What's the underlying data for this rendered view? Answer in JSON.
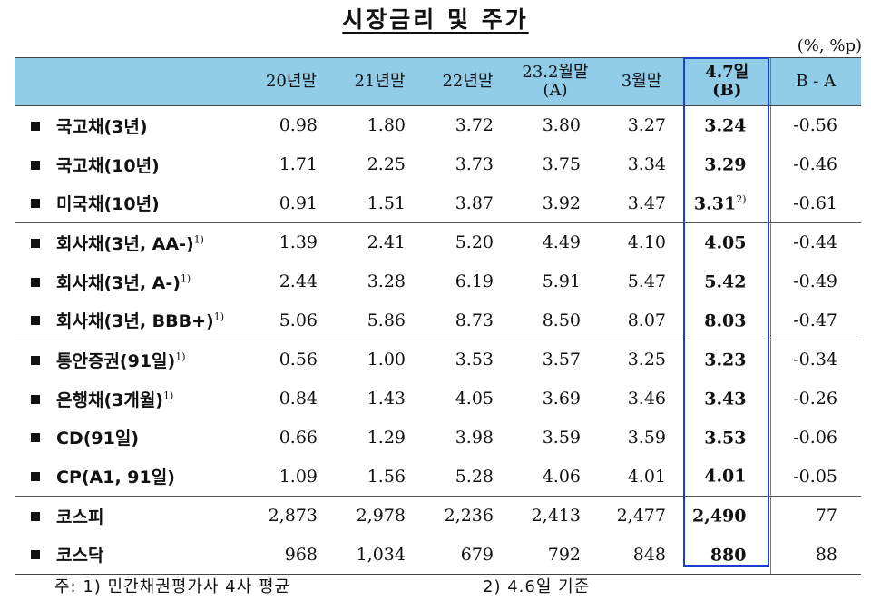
{
  "title": "시장금리 및 주가",
  "unit": "(%, %p)",
  "headers": {
    "c1": "20년말",
    "c2": "21년말",
    "c3": "22년말",
    "c4a": "23.2월말",
    "c4b": "(A)",
    "c5": "3월말",
    "c6a": "4.7일",
    "c6b": "(B)",
    "c7": "B - A"
  },
  "rows": [
    {
      "label": "국고채(3년)",
      "sup": "",
      "v": [
        "0.98",
        "1.80",
        "3.72",
        "3.80",
        "3.27"
      ],
      "b": "3.24",
      "bsup": "",
      "ba": "-0.56"
    },
    {
      "label": "국고채(10년)",
      "sup": "",
      "v": [
        "1.71",
        "2.25",
        "3.73",
        "3.75",
        "3.34"
      ],
      "b": "3.29",
      "bsup": "",
      "ba": "-0.46"
    },
    {
      "label": "미국채(10년)",
      "sup": "",
      "v": [
        "0.91",
        "1.51",
        "3.87",
        "3.92",
        "3.47"
      ],
      "b": "3.31",
      "bsup": "2)",
      "ba": "-0.61"
    },
    {
      "label": "회사채(3년, AA-)",
      "sup": "1)",
      "v": [
        "1.39",
        "2.41",
        "5.20",
        "4.49",
        "4.10"
      ],
      "b": "4.05",
      "bsup": "",
      "ba": "-0.44"
    },
    {
      "label": "회사채(3년, A-)",
      "sup": "1)",
      "v": [
        "2.44",
        "3.28",
        "6.19",
        "5.91",
        "5.47"
      ],
      "b": "5.42",
      "bsup": "",
      "ba": "-0.49"
    },
    {
      "label": "회사채(3년, BBB+)",
      "sup": "1)",
      "v": [
        "5.06",
        "5.86",
        "8.73",
        "8.50",
        "8.07"
      ],
      "b": "8.03",
      "bsup": "",
      "ba": "-0.47"
    },
    {
      "label": "통안증권(91일)",
      "sup": "1)",
      "v": [
        "0.56",
        "1.00",
        "3.53",
        "3.57",
        "3.25"
      ],
      "b": "3.23",
      "bsup": "",
      "ba": "-0.34"
    },
    {
      "label": "은행채(3개월)",
      "sup": "1)",
      "v": [
        "0.84",
        "1.43",
        "4.05",
        "3.69",
        "3.46"
      ],
      "b": "3.43",
      "bsup": "",
      "ba": "-0.26"
    },
    {
      "label": "CD(91일)",
      "sup": "",
      "v": [
        "0.66",
        "1.29",
        "3.98",
        "3.59",
        "3.59"
      ],
      "b": "3.53",
      "bsup": "",
      "ba": "-0.06"
    },
    {
      "label": "CP(A1, 91일)",
      "sup": "",
      "v": [
        "1.09",
        "1.56",
        "5.28",
        "4.06",
        "4.01"
      ],
      "b": "4.01",
      "bsup": "",
      "ba": "-0.05"
    },
    {
      "label": "코스피",
      "sup": "",
      "v": [
        "2,873",
        "2,978",
        "2,236",
        "2,413",
        "2,477"
      ],
      "b": "2,490",
      "bsup": "",
      "ba": "77"
    },
    {
      "label": "코스닥",
      "sup": "",
      "v": [
        "968",
        "1,034",
        "679",
        "792",
        "848"
      ],
      "b": "880",
      "bsup": "",
      "ba": "88"
    }
  ],
  "notes": {
    "note1": "주: 1) 민간채권평가사 4사 평균",
    "note2": "2) 4.6일 기준"
  }
}
